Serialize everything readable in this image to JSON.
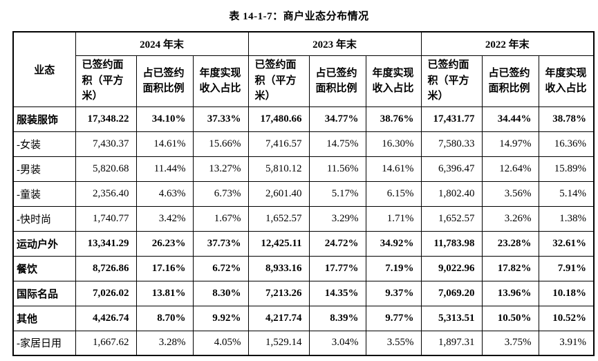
{
  "page_title": "表 14-1-7：商户业态分布情况",
  "table": {
    "category_header": "业态",
    "year_groups": [
      "2024 年末",
      "2023 年末",
      "2022 年末"
    ],
    "sub_headers": [
      "已签约面积（平方米）",
      "占已签约面积比例",
      "年度实现收入占比"
    ],
    "rows": [
      {
        "label": "服装服饰",
        "bold": true,
        "values": [
          "17,348.22",
          "34.10%",
          "37.33%",
          "17,480.66",
          "34.77%",
          "38.76%",
          "17,431.77",
          "34.44%",
          "38.78%"
        ]
      },
      {
        "label": "-女装",
        "bold": false,
        "values": [
          "7,430.37",
          "14.61%",
          "15.66%",
          "7,416.57",
          "14.75%",
          "16.30%",
          "7,580.33",
          "14.97%",
          "16.36%"
        ]
      },
      {
        "label": "-男装",
        "bold": false,
        "values": [
          "5,820.68",
          "11.44%",
          "13.27%",
          "5,810.12",
          "11.56%",
          "14.61%",
          "6,396.47",
          "12.64%",
          "15.89%"
        ]
      },
      {
        "label": "-童装",
        "bold": false,
        "values": [
          "2,356.40",
          "4.63%",
          "6.73%",
          "2,601.40",
          "5.17%",
          "6.15%",
          "1,802.40",
          "3.56%",
          "5.14%"
        ]
      },
      {
        "label": "-快时尚",
        "bold": false,
        "values": [
          "1,740.77",
          "3.42%",
          "1.67%",
          "1,652.57",
          "3.29%",
          "1.71%",
          "1,652.57",
          "3.26%",
          "1.38%"
        ]
      },
      {
        "label": "运动户外",
        "bold": true,
        "values": [
          "13,341.29",
          "26.23%",
          "37.73%",
          "12,425.11",
          "24.72%",
          "34.92%",
          "11,783.98",
          "23.28%",
          "32.61%"
        ]
      },
      {
        "label": "餐饮",
        "bold": true,
        "values": [
          "8,726.86",
          "17.16%",
          "6.72%",
          "8,933.16",
          "17.77%",
          "7.19%",
          "9,022.96",
          "17.82%",
          "7.91%"
        ]
      },
      {
        "label": "国际名品",
        "bold": true,
        "values": [
          "7,026.02",
          "13.81%",
          "8.30%",
          "7,213.26",
          "14.35%",
          "9.37%",
          "7,069.20",
          "13.96%",
          "10.18%"
        ]
      },
      {
        "label": "其他",
        "bold": true,
        "values": [
          "4,426.74",
          "8.70%",
          "9.92%",
          "4,217.74",
          "8.39%",
          "9.77%",
          "5,313.51",
          "10.50%",
          "10.52%"
        ]
      },
      {
        "label": "-家居日用",
        "bold": false,
        "values": [
          "1,667.62",
          "3.28%",
          "4.05%",
          "1,529.14",
          "3.04%",
          "3.55%",
          "1,897.31",
          "3.75%",
          "3.91%"
        ]
      }
    ]
  }
}
